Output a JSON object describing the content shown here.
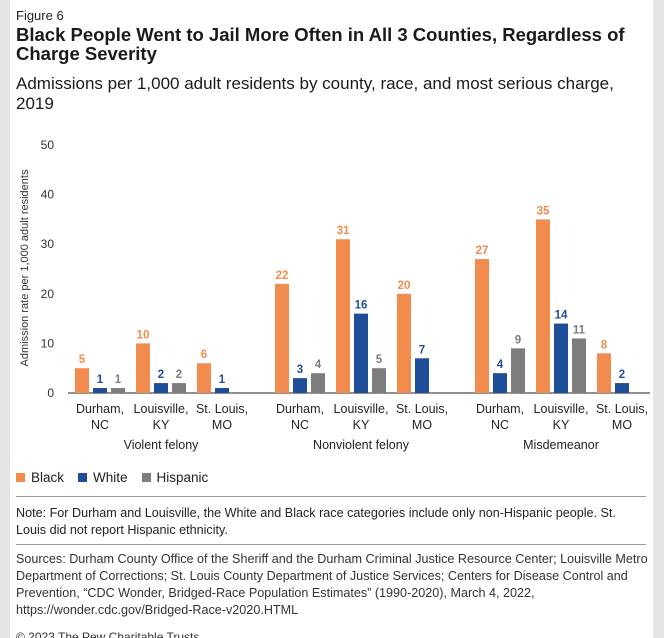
{
  "figure_label": "Figure 6",
  "title": "Black People Went to Jail More Often in All 3 Counties, Regardless of Charge Severity",
  "subtitle": "Admissions per 1,000 adult residents by county, race, and most serious charge, 2019",
  "chart_data": {
    "type": "bar",
    "ylabel": "Admission rate per 1,000 adult residents",
    "ylim": [
      0,
      50
    ],
    "yticks": [
      0,
      10,
      20,
      30,
      40,
      50
    ],
    "grid": false,
    "legend_position": "bottom-left",
    "series": [
      {
        "name": "Black",
        "color": "#f28b4e"
      },
      {
        "name": "White",
        "color": "#1f4e98"
      },
      {
        "name": "Hispanic",
        "color": "#7d7d7d"
      }
    ],
    "groups": [
      {
        "name": "Violent felony",
        "counties": [
          {
            "line1": "Durham,",
            "line2": "NC",
            "values": [
              5,
              1,
              1
            ]
          },
          {
            "line1": "Louisville,",
            "line2": "KY",
            "values": [
              10,
              2,
              2
            ]
          },
          {
            "line1": "St. Louis,",
            "line2": "MO",
            "values": [
              6,
              1,
              null
            ]
          }
        ]
      },
      {
        "name": "Nonviolent felony",
        "counties": [
          {
            "line1": "Durham,",
            "line2": "NC",
            "values": [
              22,
              3,
              4
            ]
          },
          {
            "line1": "Louisville,",
            "line2": "KY",
            "values": [
              31,
              16,
              5
            ]
          },
          {
            "line1": "St. Louis,",
            "line2": "MO",
            "values": [
              20,
              7,
              null
            ]
          }
        ]
      },
      {
        "name": "Misdemeanor",
        "counties": [
          {
            "line1": "Durham,",
            "line2": "NC",
            "values": [
              27,
              4,
              9
            ]
          },
          {
            "line1": "Louisville,",
            "line2": "KY",
            "values": [
              35,
              14,
              11
            ]
          },
          {
            "line1": "St. Louis,",
            "line2": "MO",
            "values": [
              8,
              2,
              null
            ]
          }
        ]
      }
    ]
  },
  "legend": {
    "black": "Black",
    "white": "White",
    "hispanic": "Hispanic"
  },
  "note": "Note: For Durham and Louisville, the White and Black race categories include only non-Hispanic people. St. Louis did not report Hispanic ethnicity.",
  "sources": "Sources: Durham County Office of the Sheriff and the Durham Criminal Justice Resource Center; Louisville Metro Department of Corrections; St. Louis County Department of Justice Services; Centers for Disease Control and Prevention, “CDC Wonder, Bridged-Race Population Estimates” (1990-2020), March 4, 2022, https://wonder.cdc.gov/Bridged-Race-v2020.HTML",
  "copyright": "© 2023 The Pew Charitable Trusts",
  "colors": {
    "black": "#f28b4e",
    "white": "#1f4e98",
    "hispanic": "#7d7d7d",
    "background": "#e4e4e4"
  }
}
